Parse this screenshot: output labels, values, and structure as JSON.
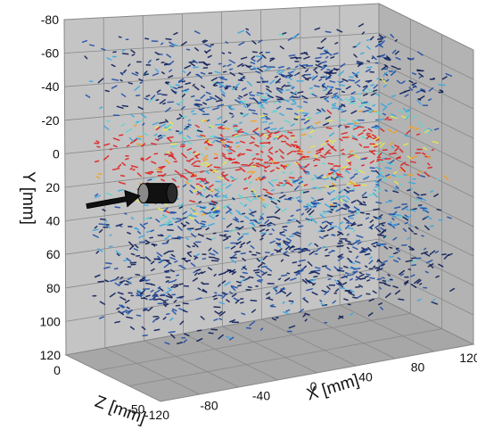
{
  "chart_data": {
    "type": "scatter",
    "title": "",
    "axes": {
      "x": {
        "label": "X [mm]",
        "ticks": [
          "-120",
          "-80",
          "-40",
          "0",
          "40",
          "80",
          "120"
        ],
        "range": [
          -120,
          120
        ]
      },
      "y": {
        "label": "Y [mm]",
        "ticks": [
          "-80",
          "-60",
          "-40",
          "-20",
          "0",
          "20",
          "40",
          "60",
          "80",
          "100",
          "120"
        ],
        "range": [
          -80,
          120
        ],
        "inverted": true
      },
      "z": {
        "label": "Z [mm]",
        "ticks": [
          "0",
          "-50"
        ],
        "range": [
          -60,
          0
        ]
      }
    },
    "grid": true,
    "projection": "3d-box",
    "colormap": [
      "#0f1e5a",
      "#1f4fa8",
      "#3aa9e0",
      "#5fd6d0",
      "#e8e84a",
      "#f4a020",
      "#e02020"
    ],
    "jet": {
      "direction": "+x",
      "axis_y": 0,
      "inlet_x": -120
    },
    "nozzle_icon": "nozzle-cylinder-icon",
    "inflow_icon": "arrow-right-icon",
    "colors": {
      "panel": "#c4c4c4",
      "floor": "#a7a7a7",
      "gridline": "#888888"
    }
  }
}
